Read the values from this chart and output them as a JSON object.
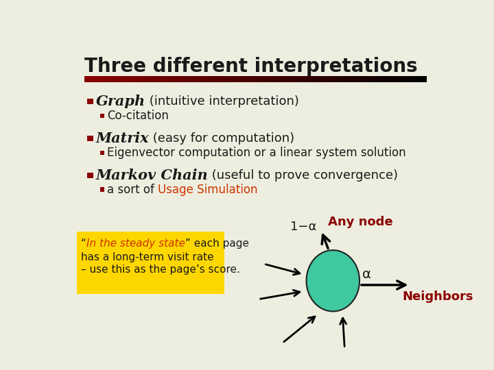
{
  "title": "Three different interpretations",
  "bg_color": "#EEEEE0",
  "title_color": "#1a1a1a",
  "bullet_color": "#8B0000",
  "red_link_color": "#CC3300",
  "dark_red_label": "#8B0000",
  "bullet1_bold": "Graph",
  "bullet1_rest": " (intuitive interpretation)",
  "sub1": "Co-citation",
  "bullet2_bold": "Matrix",
  "bullet2_rest": " (easy for computation)",
  "sub2": "Eigenvector computation or a linear system solution",
  "bullet3_bold": "Markov Chain",
  "bullet3_rest": " (useful to prove convergence)",
  "sub3_plain": "a sort of ",
  "sub3_link": "Usage Simulation",
  "node_color": "#40C8A0",
  "any_node_label": "Any node",
  "alpha_label": "α",
  "one_minus_alpha_label": "1−α",
  "neighbors_label": "Neighbors",
  "box_bg": "#FFD700",
  "box_text_italic_red": "In the steady state",
  "quote_open": "“",
  "quote_close": "”"
}
